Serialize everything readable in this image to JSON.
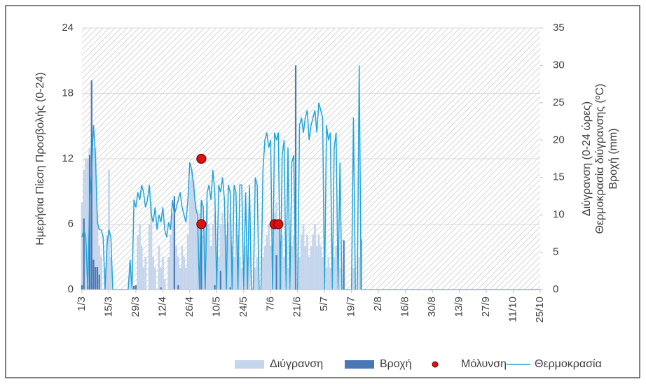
{
  "chart_data": {
    "type": "bar",
    "y_label": "Ημερήσια Πίεση Προσβολής (0-24)",
    "y2_label": [
      "Διύγρανση (0-24 ώρες)",
      "Θερμοκρασία διύγρανσης (ºC)",
      "Βροχή (mm)"
    ],
    "ylim": [
      0,
      24
    ],
    "yticks": [
      0,
      6,
      12,
      18,
      24
    ],
    "y2lim": [
      0,
      35
    ],
    "y2ticks": [
      0,
      5,
      10,
      15,
      20,
      25,
      30,
      35
    ],
    "grid": true,
    "legend": "bottom",
    "categories": [
      "1/3",
      null,
      null,
      null,
      null,
      null,
      null,
      null,
      null,
      null,
      null,
      null,
      null,
      null,
      "15/3",
      null,
      null,
      null,
      null,
      null,
      null,
      null,
      null,
      null,
      null,
      null,
      null,
      null,
      "29/3",
      null,
      null,
      null,
      null,
      null,
      null,
      null,
      null,
      null,
      null,
      null,
      null,
      null,
      "12/4",
      null,
      null,
      null,
      null,
      null,
      null,
      null,
      null,
      null,
      null,
      null,
      null,
      null,
      "26/4",
      null,
      null,
      null,
      null,
      null,
      null,
      null,
      null,
      null,
      null,
      null,
      null,
      null,
      "10/5",
      null,
      null,
      null,
      null,
      null,
      null,
      null,
      null,
      null,
      null,
      null,
      null,
      null,
      "24/5",
      null,
      null,
      null,
      null,
      null,
      null,
      null,
      null,
      null,
      null,
      null,
      null,
      null,
      "7/6",
      null,
      null,
      null,
      null,
      null,
      null,
      null,
      null,
      null,
      null,
      null,
      null,
      null,
      "21/6",
      null,
      null,
      null,
      null,
      null,
      null,
      null,
      null,
      null,
      null,
      null,
      null,
      null,
      "5/7",
      null,
      null,
      null,
      null,
      null,
      null,
      null,
      null,
      null,
      null,
      null,
      null,
      null,
      "19/7",
      null,
      null,
      null,
      null,
      null,
      null,
      null,
      null,
      null,
      null,
      null,
      null,
      null,
      "2/8",
      null,
      null,
      null,
      null,
      null,
      null,
      null,
      null,
      null,
      null,
      null,
      null,
      null,
      "16/8",
      null,
      null,
      null,
      null,
      null,
      null,
      null,
      null,
      null,
      null,
      null,
      null,
      null,
      "30/8",
      null,
      null,
      null,
      null,
      null,
      null,
      null,
      null,
      null,
      null,
      null,
      null,
      null,
      "13/9",
      null,
      null,
      null,
      null,
      null,
      null,
      null,
      null,
      null,
      null,
      null,
      null,
      null,
      "27/9",
      null,
      null,
      null,
      null,
      null,
      null,
      null,
      null,
      null,
      null,
      null,
      null,
      null,
      "11/10",
      null,
      null,
      null,
      null,
      null,
      null,
      null,
      null,
      null,
      null,
      null,
      null,
      null,
      "25/10"
    ],
    "series": [
      {
        "name": "Διύγρανση",
        "type": "bar",
        "color": "#c5d5ec",
        "values": [
          8,
          11,
          12,
          12,
          13,
          12,
          13,
          13,
          7,
          4,
          3,
          0,
          2,
          5,
          11,
          3,
          0,
          0,
          0,
          0,
          0,
          0,
          0,
          0,
          0,
          2,
          0,
          0,
          0,
          5,
          6,
          4,
          2,
          3,
          0,
          6,
          8,
          3,
          2,
          0,
          4,
          2,
          3,
          1,
          0,
          3,
          5,
          7,
          6,
          4,
          3,
          2,
          4,
          3,
          2,
          5,
          10,
          11,
          10,
          8,
          6,
          7,
          8,
          5,
          6,
          8,
          6,
          4,
          6,
          7,
          2,
          3,
          6,
          7,
          6,
          5,
          6,
          7,
          4,
          3,
          6,
          5,
          3,
          2,
          0,
          4,
          2,
          3,
          0,
          0,
          2,
          3,
          0,
          0,
          3,
          4,
          5,
          6,
          4,
          3,
          7,
          8,
          6,
          4,
          5,
          3,
          0,
          2,
          0,
          4,
          5,
          4,
          0,
          3,
          5,
          6,
          4,
          5,
          3,
          4,
          5,
          6,
          4,
          5,
          4,
          3,
          0,
          2,
          3,
          2,
          0,
          3,
          4,
          0,
          2,
          0,
          0,
          0,
          0,
          0,
          0,
          2,
          0,
          0,
          3,
          0,
          0,
          0,
          0,
          0,
          0,
          0,
          0,
          0,
          0,
          0,
          0,
          0,
          0,
          0,
          0,
          0,
          0,
          0,
          0,
          0,
          0,
          0,
          0,
          0,
          0,
          0,
          0,
          0,
          0,
          0,
          0,
          0,
          0,
          0,
          0,
          0,
          0,
          0,
          0,
          0,
          0,
          0,
          0,
          0,
          0,
          0,
          0,
          0,
          0,
          0,
          0,
          0,
          0,
          0,
          0,
          0,
          0,
          0,
          0,
          0,
          0,
          0,
          0,
          0,
          0,
          0,
          0,
          0,
          0,
          0,
          0,
          0,
          0,
          0,
          0,
          0,
          0,
          0,
          0,
          0,
          0,
          0,
          0,
          0,
          0,
          0,
          0,
          0,
          0,
          0,
          0,
          0,
          0
        ]
      },
      {
        "name": "Βροχή",
        "type": "bar",
        "axis": "y2",
        "color": "#4a78b5",
        "values": [
          0.6,
          9.5,
          0,
          0.5,
          18,
          28,
          4,
          3,
          3,
          2,
          0,
          0,
          0,
          0,
          0,
          0,
          0,
          0,
          0,
          0,
          0,
          0,
          0,
          0,
          0,
          0,
          0,
          0.5,
          0.6,
          0,
          0,
          0,
          0,
          0,
          0,
          0,
          0,
          0,
          0,
          0,
          0,
          0.3,
          0,
          0,
          0,
          0,
          0,
          0,
          12.5,
          0,
          0.6,
          0,
          0,
          0,
          0,
          0,
          0,
          0,
          0,
          0,
          0,
          0,
          9,
          0,
          0,
          0,
          0,
          0,
          0,
          0.6,
          0,
          0,
          2.5,
          0,
          0,
          0,
          0,
          0.3,
          0,
          0,
          0,
          0,
          0,
          0,
          0,
          0,
          0,
          0,
          0,
          0,
          0,
          0,
          0,
          0,
          0,
          0,
          0,
          0,
          0,
          0,
          0,
          4.6,
          0,
          6.5,
          0,
          0,
          0,
          0,
          0,
          0,
          0,
          30,
          0,
          0,
          0,
          0,
          0,
          0,
          0,
          0,
          0,
          0,
          0,
          0,
          0,
          0,
          0,
          0,
          0,
          0,
          0,
          0,
          0,
          0,
          0,
          0,
          6.6,
          0,
          0,
          0,
          0,
          0,
          0,
          0,
          0,
          6.7,
          0,
          0,
          0,
          0,
          0,
          0,
          0,
          0,
          0,
          0,
          0,
          0,
          0,
          0,
          0,
          0,
          0,
          0,
          0,
          0,
          0,
          0,
          0,
          0,
          0,
          0,
          0,
          0,
          0,
          0,
          0,
          0,
          0,
          0,
          0,
          0,
          0,
          0,
          0,
          0,
          0,
          0,
          0,
          0,
          0,
          0,
          0,
          0,
          0,
          0,
          0,
          0,
          0,
          0,
          0,
          0,
          0,
          0,
          0,
          0,
          0,
          0,
          0,
          0,
          0,
          0,
          0,
          0,
          0,
          0,
          0,
          0,
          0,
          0,
          0,
          0,
          0,
          0,
          0,
          0,
          0,
          0,
          0,
          0,
          0,
          0,
          0,
          0,
          0,
          0,
          0,
          0,
          0
        ]
      },
      {
        "name": "Μόλυνση",
        "type": "scatter",
        "color": "#e01010",
        "x": [
          "2/5",
          "2/5",
          "9/6",
          "11/6"
        ],
        "values": [
          12,
          6,
          6,
          6
        ]
      },
      {
        "name": "Θερμοκρασία",
        "type": "line",
        "axis": "y2",
        "color": "#1fa5dc",
        "values": [
          7,
          8,
          7,
          0,
          12,
          16,
          22,
          18,
          9,
          8,
          8,
          7,
          0,
          6,
          8,
          7,
          0,
          0,
          0,
          0,
          0,
          0,
          0,
          0,
          0,
          4,
          0,
          12,
          11,
          13,
          12,
          14,
          13,
          11,
          12,
          14,
          10,
          9,
          11,
          8,
          10,
          9,
          11,
          8,
          7,
          9,
          8,
          12,
          10,
          11,
          12,
          13,
          11,
          10,
          9,
          12,
          17,
          16,
          14,
          11,
          10,
          0,
          12,
          11,
          0,
          13,
          14,
          12,
          16,
          13,
          0,
          14,
          13,
          15,
          12,
          0,
          14,
          13,
          0,
          14,
          13,
          0,
          14,
          14,
          0,
          13,
          0,
          14,
          0,
          0,
          15,
          14,
          0,
          0,
          16,
          20,
          21,
          19,
          20,
          0,
          21,
          20,
          21,
          0,
          18,
          20,
          0,
          19,
          0,
          17,
          18,
          0,
          0,
          22,
          23,
          21,
          23,
          24,
          20,
          22,
          23,
          24,
          21,
          25,
          24,
          23,
          0,
          22,
          20,
          21,
          0,
          19,
          21,
          0,
          17,
          0,
          0,
          0,
          0,
          0,
          0,
          23,
          0,
          0,
          30,
          0,
          0,
          0,
          0,
          0,
          0,
          0,
          0,
          0,
          0,
          0,
          0,
          0,
          0,
          0,
          0,
          0,
          0,
          0,
          0,
          0,
          0,
          0,
          0,
          0,
          0,
          0,
          0,
          0,
          0,
          0,
          0,
          0,
          0,
          0,
          0,
          0,
          0,
          0,
          0,
          0,
          0,
          0,
          0,
          0,
          0,
          0,
          0,
          0,
          0,
          0,
          0,
          0,
          0,
          0,
          0,
          0,
          0,
          0,
          0,
          0,
          0,
          0,
          0,
          0,
          0,
          0,
          0,
          0,
          0,
          0,
          0,
          0,
          0,
          0,
          0,
          0,
          0,
          0,
          0,
          0,
          0,
          0,
          0,
          0,
          0,
          0,
          0,
          0,
          0,
          0,
          0,
          0,
          0
        ]
      }
    ]
  }
}
